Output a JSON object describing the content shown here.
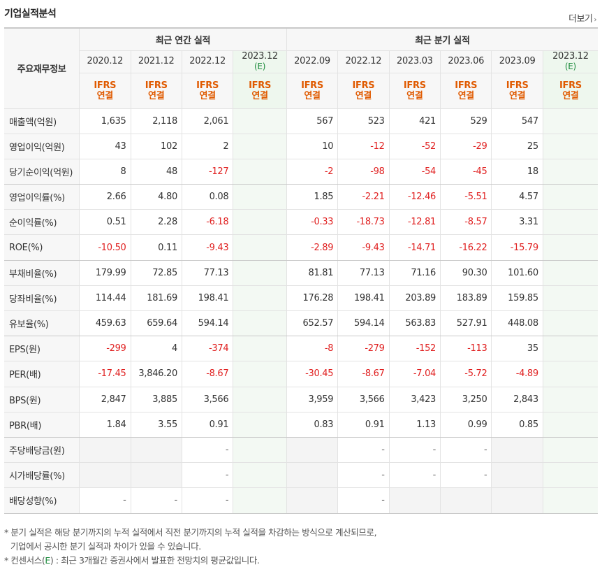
{
  "section": {
    "title": "기업실적분석",
    "more_label": "더보기",
    "more_arrow": "›"
  },
  "header": {
    "row_label": "주요재무정보",
    "annual_label": "최근 연간 실적",
    "quarter_label": "최근 분기 실적",
    "annual_periods": [
      {
        "period": "2020.12",
        "estimate": ""
      },
      {
        "period": "2021.12",
        "estimate": ""
      },
      {
        "period": "2022.12",
        "estimate": ""
      },
      {
        "period": "2023.12",
        "estimate": "(E)"
      }
    ],
    "quarter_periods": [
      {
        "period": "2022.09",
        "estimate": ""
      },
      {
        "period": "2022.12",
        "estimate": ""
      },
      {
        "period": "2023.03",
        "estimate": ""
      },
      {
        "period": "2023.06",
        "estimate": ""
      },
      {
        "period": "2023.09",
        "estimate": ""
      },
      {
        "period": "2023.12",
        "estimate": "(E)"
      }
    ],
    "standard": "IFRS",
    "scope": "연결"
  },
  "rows": [
    {
      "label": "매출액(억원)",
      "values": [
        "1,635",
        "2,118",
        "2,061",
        "",
        "567",
        "523",
        "421",
        "529",
        "547",
        ""
      ]
    },
    {
      "label": "영업이익(억원)",
      "values": [
        "43",
        "102",
        "2",
        "",
        "10",
        "-12",
        "-52",
        "-29",
        "25",
        ""
      ]
    },
    {
      "label": "당기순이익(억원)",
      "values": [
        "8",
        "48",
        "-127",
        "",
        "-2",
        "-98",
        "-54",
        "-45",
        "18",
        ""
      ]
    },
    {
      "label": "영업이익률(%)",
      "values": [
        "2.66",
        "4.80",
        "0.08",
        "",
        "1.85",
        "-2.21",
        "-12.46",
        "-5.51",
        "4.57",
        ""
      ]
    },
    {
      "label": "순이익률(%)",
      "values": [
        "0.51",
        "2.28",
        "-6.18",
        "",
        "-0.33",
        "-18.73",
        "-12.81",
        "-8.57",
        "3.31",
        ""
      ]
    },
    {
      "label": "ROE(%)",
      "values": [
        "-10.50",
        "0.11",
        "-9.43",
        "",
        "-2.89",
        "-9.43",
        "-14.71",
        "-16.22",
        "-15.79",
        ""
      ]
    },
    {
      "label": "부채비율(%)",
      "values": [
        "179.99",
        "72.85",
        "77.13",
        "",
        "81.81",
        "77.13",
        "71.16",
        "90.30",
        "101.60",
        ""
      ]
    },
    {
      "label": "당좌비율(%)",
      "values": [
        "114.44",
        "181.69",
        "198.41",
        "",
        "176.28",
        "198.41",
        "203.89",
        "183.89",
        "159.85",
        ""
      ]
    },
    {
      "label": "유보율(%)",
      "values": [
        "459.63",
        "659.64",
        "594.14",
        "",
        "652.57",
        "594.14",
        "563.83",
        "527.91",
        "448.08",
        ""
      ]
    },
    {
      "label": "EPS(원)",
      "values": [
        "-299",
        "4",
        "-374",
        "",
        "-8",
        "-279",
        "-152",
        "-113",
        "35",
        ""
      ]
    },
    {
      "label": "PER(배)",
      "values": [
        "-17.45",
        "3,846.20",
        "-8.67",
        "",
        "-30.45",
        "-8.67",
        "-7.04",
        "-5.72",
        "-4.89",
        ""
      ]
    },
    {
      "label": "BPS(원)",
      "values": [
        "2,847",
        "3,885",
        "3,566",
        "",
        "3,959",
        "3,566",
        "3,423",
        "3,250",
        "2,843",
        ""
      ]
    },
    {
      "label": "PBR(배)",
      "values": [
        "1.84",
        "3.55",
        "0.91",
        "",
        "0.83",
        "0.91",
        "1.13",
        "0.99",
        "0.85",
        ""
      ]
    },
    {
      "label": "주당배당금(원)",
      "values": [
        null,
        null,
        "-",
        "",
        null,
        "-",
        "-",
        "-",
        null,
        ""
      ]
    },
    {
      "label": "시가배당률(%)",
      "values": [
        null,
        null,
        "-",
        "",
        null,
        "-",
        "-",
        "-",
        null,
        ""
      ]
    },
    {
      "label": "배당성향(%)",
      "values": [
        "-",
        "-",
        "-",
        "",
        null,
        "-",
        null,
        null,
        null,
        ""
      ]
    }
  ],
  "group_ends": [
    2,
    5,
    8,
    12
  ],
  "notes": {
    "line1": "* 분기 실적은 해당 분기까지의 누적 실적에서 직전 분기까지의 누적 실적을 차감하는 방식으로 계산되므로,",
    "line2": "기업에서 공시한 분기 실적과 차이가 있을 수 있습니다.",
    "line3_prefix": "* 컨센서스(",
    "line3_e": "E",
    "line3_suffix": ") : 최근 3개월간 증권사에서 발표한 전망치의 평균값입니다."
  },
  "colors": {
    "negative": "#e01f1f",
    "ifrs": "#e05a00",
    "estimate": "#1a8a3a",
    "estimate_bg": "#f3f9f3"
  }
}
